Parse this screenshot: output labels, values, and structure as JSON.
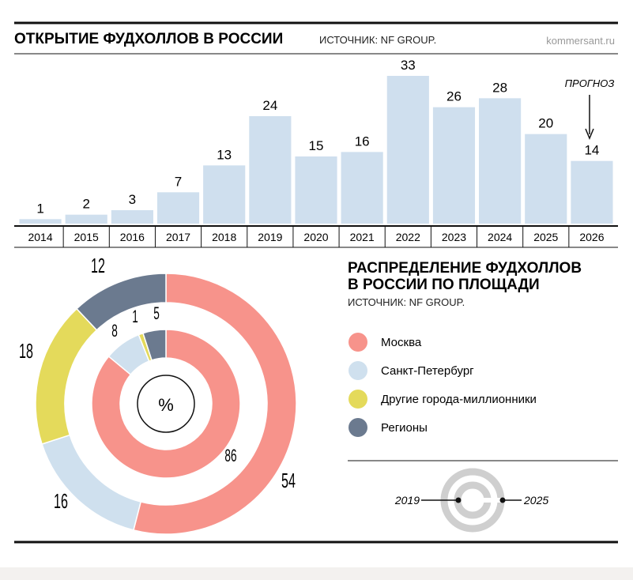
{
  "header": {
    "title": "ОТКРЫТИЕ ФУДХОЛЛОВ В РОССИИ",
    "source": "ИСТОЧНИК: NF GROUP.",
    "watermark": "kommersant.ru"
  },
  "forecast_label": "ПРОГНОЗ",
  "donut_section": {
    "title_line1": "РАСПРЕДЕЛЕНИЕ ФУДХОЛЛОВ",
    "title_line2": "В РОССИИ ПО ПЛОЩАДИ",
    "source": "ИСТОЧНИК: NF GROUP.",
    "center_label": "%",
    "legend": [
      {
        "label": "Москва",
        "color": "#f7938b"
      },
      {
        "label": "Санкт-Петербург",
        "color": "#cfe0ee"
      },
      {
        "label": "Другие города-миллионники",
        "color": "#e4da5b"
      },
      {
        "label": "Регионы",
        "color": "#6b7a8f"
      }
    ],
    "key": {
      "inner_year": "2019",
      "outer_year": "2025"
    }
  },
  "colors": {
    "bar": "#cfdfee",
    "baseline": "#111111",
    "moscow": "#f7938b",
    "spb": "#cfe0ee",
    "cities": "#e4da5b",
    "regions": "#6b7a8f",
    "key_ring": "#cfcfcf"
  },
  "chart_data": [
    {
      "type": "bar",
      "title": "ОТКРЫТИЕ ФУДХОЛЛОВ В РОССИИ",
      "categories": [
        "2014",
        "2015",
        "2016",
        "2017",
        "2018",
        "2019",
        "2020",
        "2021",
        "2022",
        "2023",
        "2024",
        "2025",
        "2026"
      ],
      "values": [
        1,
        2,
        3,
        7,
        13,
        24,
        15,
        16,
        33,
        26,
        28,
        20,
        14
      ],
      "forecast_from": "2025",
      "ylim": [
        0,
        33
      ],
      "grid": false,
      "data_labels": true
    },
    {
      "type": "pie",
      "subtype": "donut-nested",
      "title": "РАСПРЕДЕЛЕНИЕ ФУДХОЛЛОВ В РОССИИ ПО ПЛОЩАДИ",
      "categories": [
        "Москва",
        "Санкт-Петербург",
        "Другие города-миллионники",
        "Регионы"
      ],
      "series": [
        {
          "name": "2019",
          "ring": "inner",
          "values": [
            86,
            8,
            1,
            5
          ]
        },
        {
          "name": "2025",
          "ring": "outer",
          "values": [
            54,
            16,
            18,
            12
          ]
        }
      ],
      "legend_position": "right"
    }
  ]
}
